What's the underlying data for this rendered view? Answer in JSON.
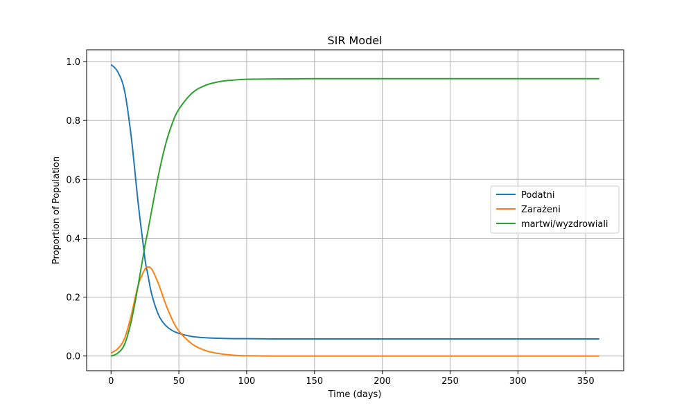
{
  "chart_data": {
    "type": "line",
    "title": "SIR Model",
    "xlabel": "Time (days)",
    "ylabel": "Proportion of Population",
    "xlim": [
      -18,
      378
    ],
    "ylim": [
      -0.05,
      1.04
    ],
    "xticks": [
      0,
      50,
      100,
      150,
      200,
      250,
      300,
      350
    ],
    "yticks": [
      0.0,
      0.2,
      0.4,
      0.6,
      0.8,
      1.0
    ],
    "xtick_labels": [
      "0",
      "50",
      "100",
      "150",
      "200",
      "250",
      "300",
      "350"
    ],
    "ytick_labels": [
      "0.0",
      "0.2",
      "0.4",
      "0.6",
      "0.8",
      "1.0"
    ],
    "grid": true,
    "legend_position": "center-right",
    "x": [
      0,
      5,
      10,
      15,
      20,
      25,
      27,
      30,
      35,
      40,
      45,
      50,
      60,
      70,
      80,
      90,
      100,
      120,
      150,
      200,
      250,
      300,
      360
    ],
    "series": [
      {
        "name": "Podatni",
        "color": "#1f77b4",
        "values": [
          0.99,
          0.965,
          0.9,
          0.74,
          0.52,
          0.33,
          0.28,
          0.21,
          0.14,
          0.105,
          0.087,
          0.077,
          0.066,
          0.062,
          0.06,
          0.059,
          0.059,
          0.058,
          0.058,
          0.058,
          0.058,
          0.058,
          0.058
        ]
      },
      {
        "name": "Zarażeni",
        "color": "#ff7f0e",
        "values": [
          0.01,
          0.025,
          0.06,
          0.14,
          0.24,
          0.295,
          0.302,
          0.295,
          0.245,
          0.18,
          0.125,
          0.085,
          0.04,
          0.018,
          0.008,
          0.003,
          0.001,
          0.0,
          0.0,
          0.0,
          0.0,
          0.0,
          0.0
        ]
      },
      {
        "name": "martwi/wyzdrowiali",
        "color": "#2ca02c",
        "values": [
          0.0,
          0.01,
          0.04,
          0.12,
          0.24,
          0.375,
          0.42,
          0.495,
          0.615,
          0.715,
          0.788,
          0.838,
          0.894,
          0.92,
          0.932,
          0.937,
          0.94,
          0.941,
          0.942,
          0.942,
          0.942,
          0.942,
          0.942
        ]
      }
    ]
  }
}
